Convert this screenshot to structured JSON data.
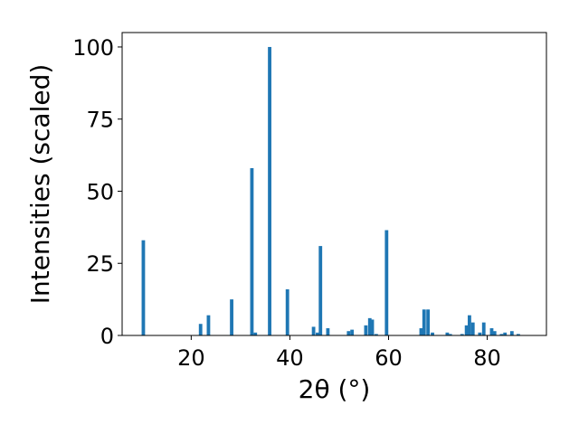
{
  "chart_data": {
    "type": "bar",
    "xlabel": "2θ (°)",
    "ylabel": "Intensities (scaled)",
    "xlim": [
      6,
      92
    ],
    "ylim": [
      0,
      105
    ],
    "xticks": [
      20,
      40,
      60,
      80
    ],
    "yticks": [
      0,
      25,
      50,
      75,
      100
    ],
    "grid": false,
    "bar_width": 0.7,
    "color": "#1f77b4",
    "x": [
      10.3,
      21.9,
      23.5,
      28.2,
      32.3,
      33.0,
      35.9,
      39.5,
      44.8,
      45.6,
      46.2,
      47.7,
      51.9,
      52.6,
      55.4,
      56.2,
      56.7,
      57.5,
      59.6,
      66.6,
      67.2,
      68.0,
      68.9,
      71.9,
      72.5,
      74.9,
      75.8,
      76.4,
      77.1,
      78.5,
      79.3,
      80.9,
      81.5,
      82.9,
      83.6,
      85.0,
      86.3
    ],
    "values": [
      33,
      4,
      7,
      12.5,
      58,
      1,
      100,
      16,
      3,
      1,
      31,
      2.5,
      1.5,
      2,
      3.5,
      6,
      5.5,
      0.5,
      36.5,
      2.5,
      9,
      9,
      1,
      1,
      0.5,
      0.5,
      3.5,
      7,
      4.5,
      1,
      4.5,
      2.5,
      1.5,
      0.5,
      1,
      1.5,
      0.5
    ]
  }
}
